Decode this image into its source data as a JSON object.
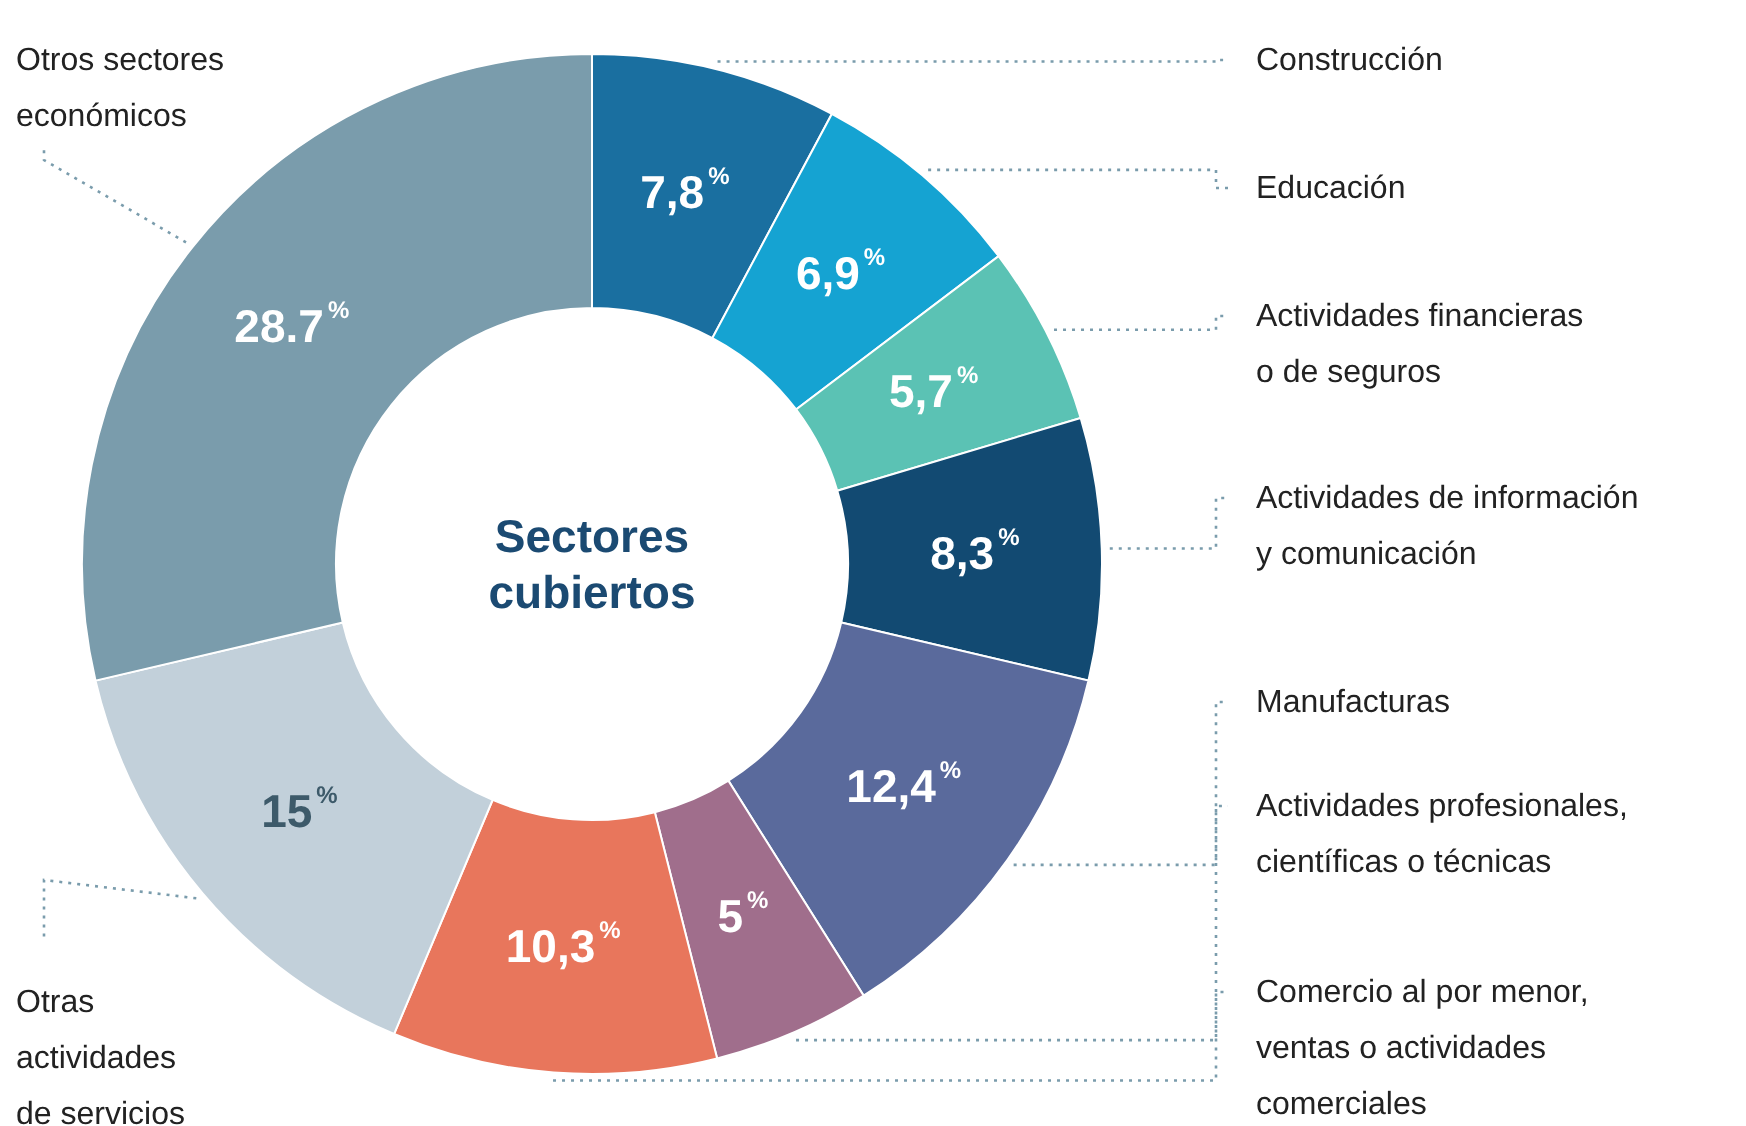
{
  "chart_data": {
    "type": "donut",
    "title": "Sectores cubiertos",
    "categories": [
      "Construcción",
      "Educación",
      "Actividades financieras o de seguros",
      "Actividades de información y comunicación",
      "Manufacturas",
      "Actividades profesionales, científicas o técnicas",
      "Comercio al por menor, ventas o actividades comerciales",
      "Otras actividades de servicios",
      "Otros sectores económicos"
    ],
    "values": [
      7.8,
      6.9,
      5.7,
      8.3,
      12.4,
      5,
      10.3,
      15,
      28.7
    ],
    "value_labels": [
      "7,8$^{%}$",
      "6,9$^{%}$",
      "5,7$^{%}$",
      "8,3$^{%}$",
      "12,4$^{%}$",
      "5$^{%}$",
      "10,3$^{%}$",
      "15$^{%}$",
      "28.7$^{%}$"
    ],
    "colors": [
      "#1a6fa0",
      "#15a3d2",
      "#5bc2b4",
      "#124a72",
      "#5a6a9c",
      "#a06e8c",
      "#e8765c",
      "#c2d0da",
      "#7a9cac"
    ],
    "legend": false
  }
}
